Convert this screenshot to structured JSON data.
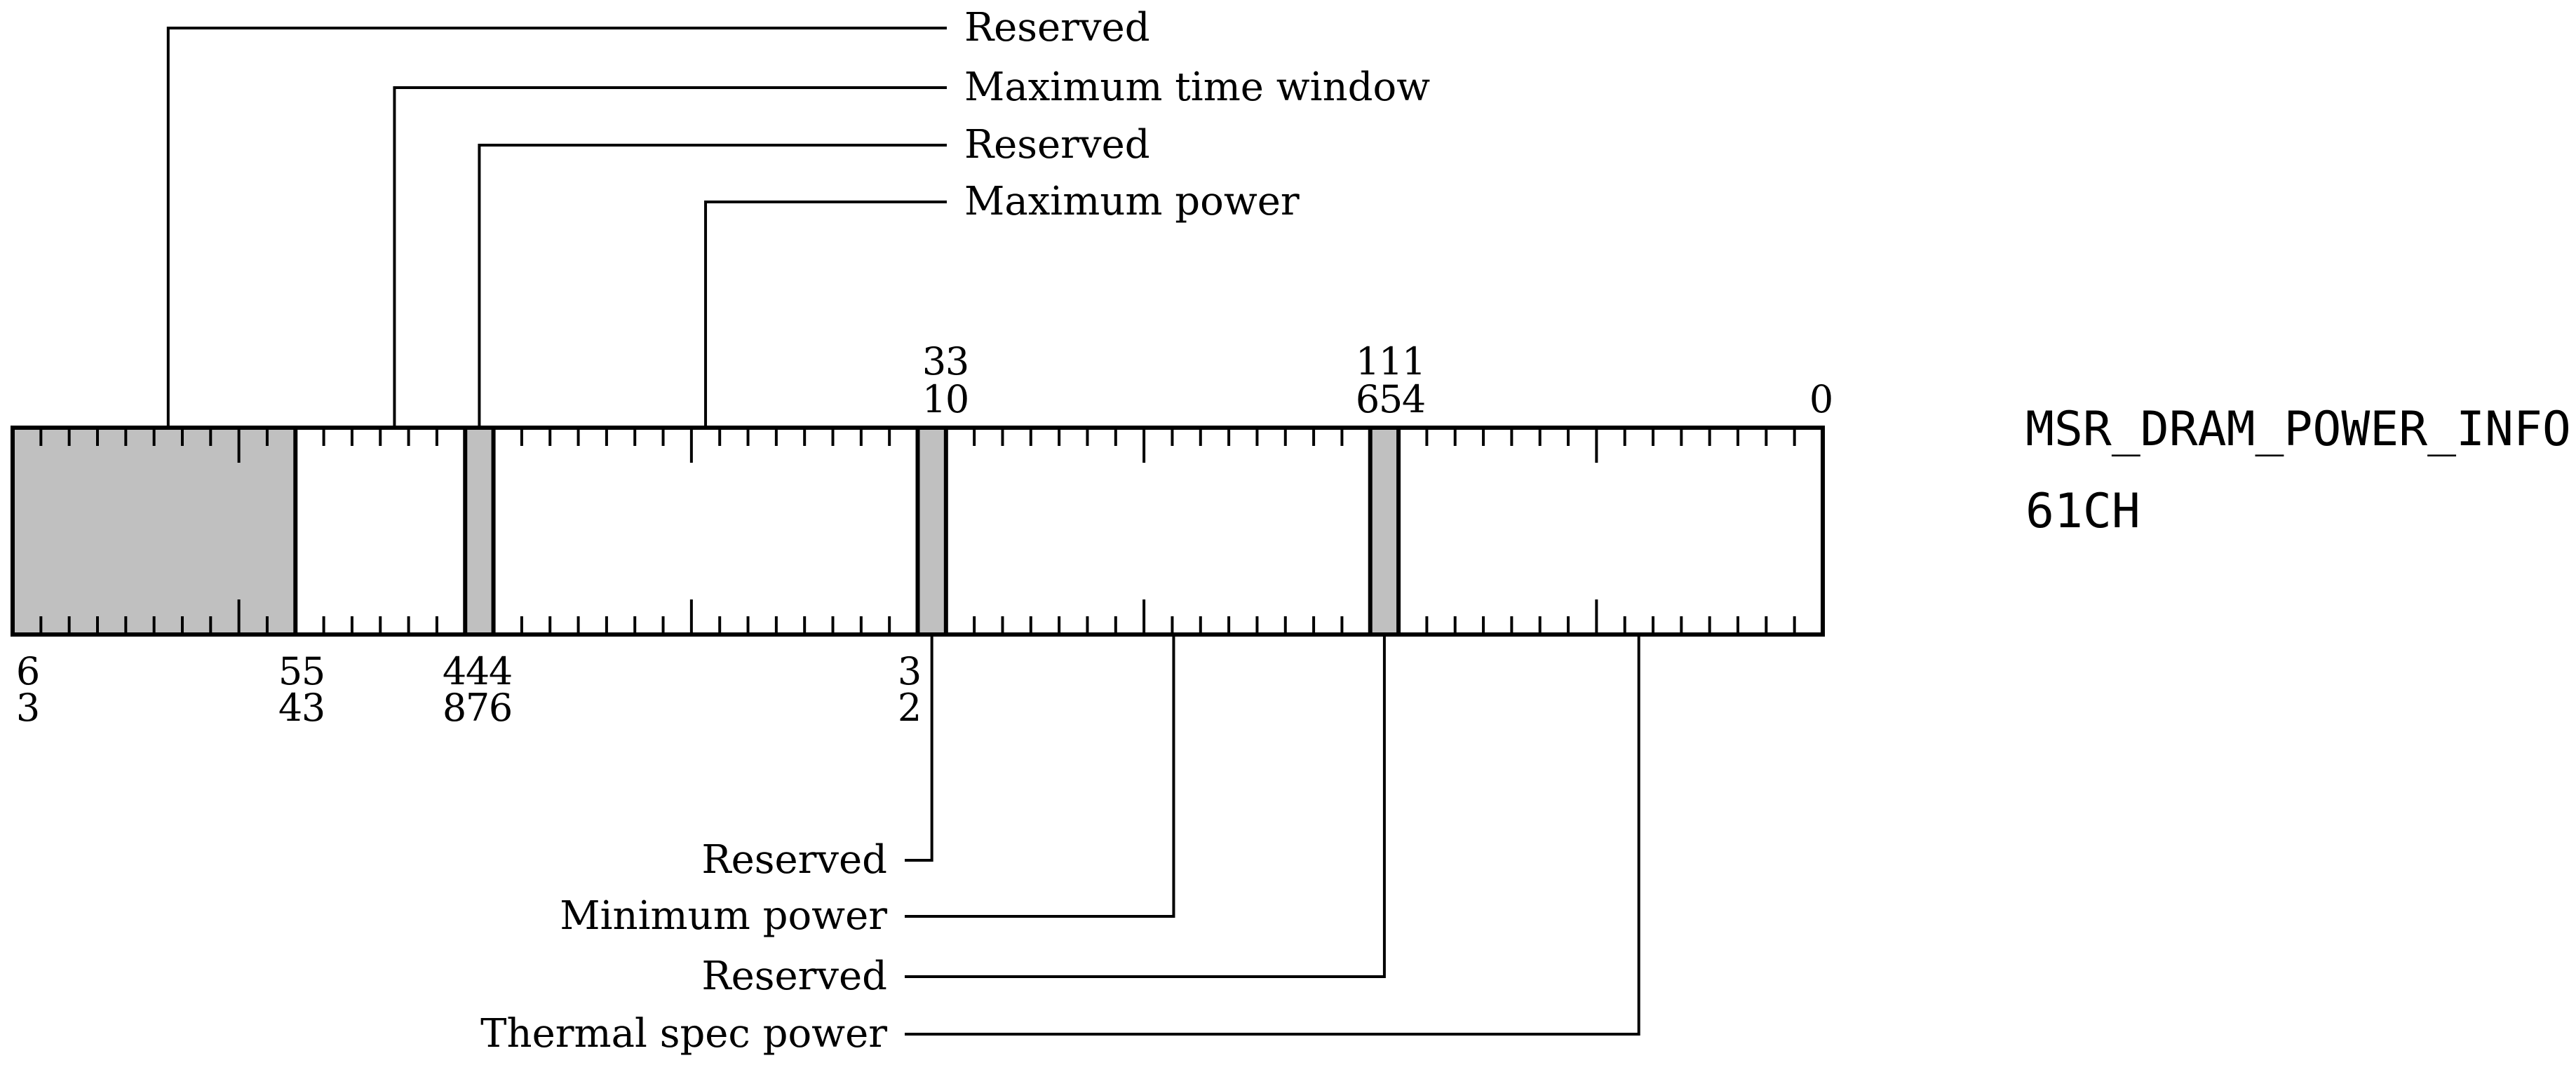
{
  "register": {
    "name": "MSR_DRAM_POWER_INFO",
    "address": "61CH"
  },
  "colors": {
    "reserved_fill": "#c0c0c0",
    "field_fill": "#ffffff",
    "stroke": "#000000"
  },
  "fields": [
    {
      "id": "reserved-63-54",
      "label": "Reserved",
      "high_bit": 63,
      "low_bit": 54,
      "reserved": true,
      "callout": "top"
    },
    {
      "id": "max-time-window",
      "label": "Maximum time window",
      "high_bit": 53,
      "low_bit": 48,
      "reserved": false,
      "callout": "top"
    },
    {
      "id": "reserved-47",
      "label": "Reserved",
      "high_bit": 47,
      "low_bit": 47,
      "reserved": true,
      "callout": "top"
    },
    {
      "id": "max-power",
      "label": "Maximum power",
      "high_bit": 46,
      "low_bit": 32,
      "reserved": false,
      "callout": "top"
    },
    {
      "id": "reserved-31",
      "label": "Reserved",
      "high_bit": 31,
      "low_bit": 31,
      "reserved": true,
      "callout": "bottom"
    },
    {
      "id": "min-power",
      "label": "Minimum power",
      "high_bit": 30,
      "low_bit": 16,
      "reserved": false,
      "callout": "bottom"
    },
    {
      "id": "reserved-15",
      "label": "Reserved",
      "high_bit": 15,
      "low_bit": 15,
      "reserved": true,
      "callout": "bottom"
    },
    {
      "id": "thermal-spec-power",
      "label": "Thermal spec power",
      "high_bit": 14,
      "low_bit": 0,
      "reserved": false,
      "callout": "bottom"
    }
  ],
  "bit_labels": {
    "top": [
      "31",
      "30",
      "16",
      "15",
      "14",
      "0"
    ],
    "bottom": [
      "63",
      "54",
      "53",
      "48",
      "47",
      "46",
      "32"
    ]
  }
}
